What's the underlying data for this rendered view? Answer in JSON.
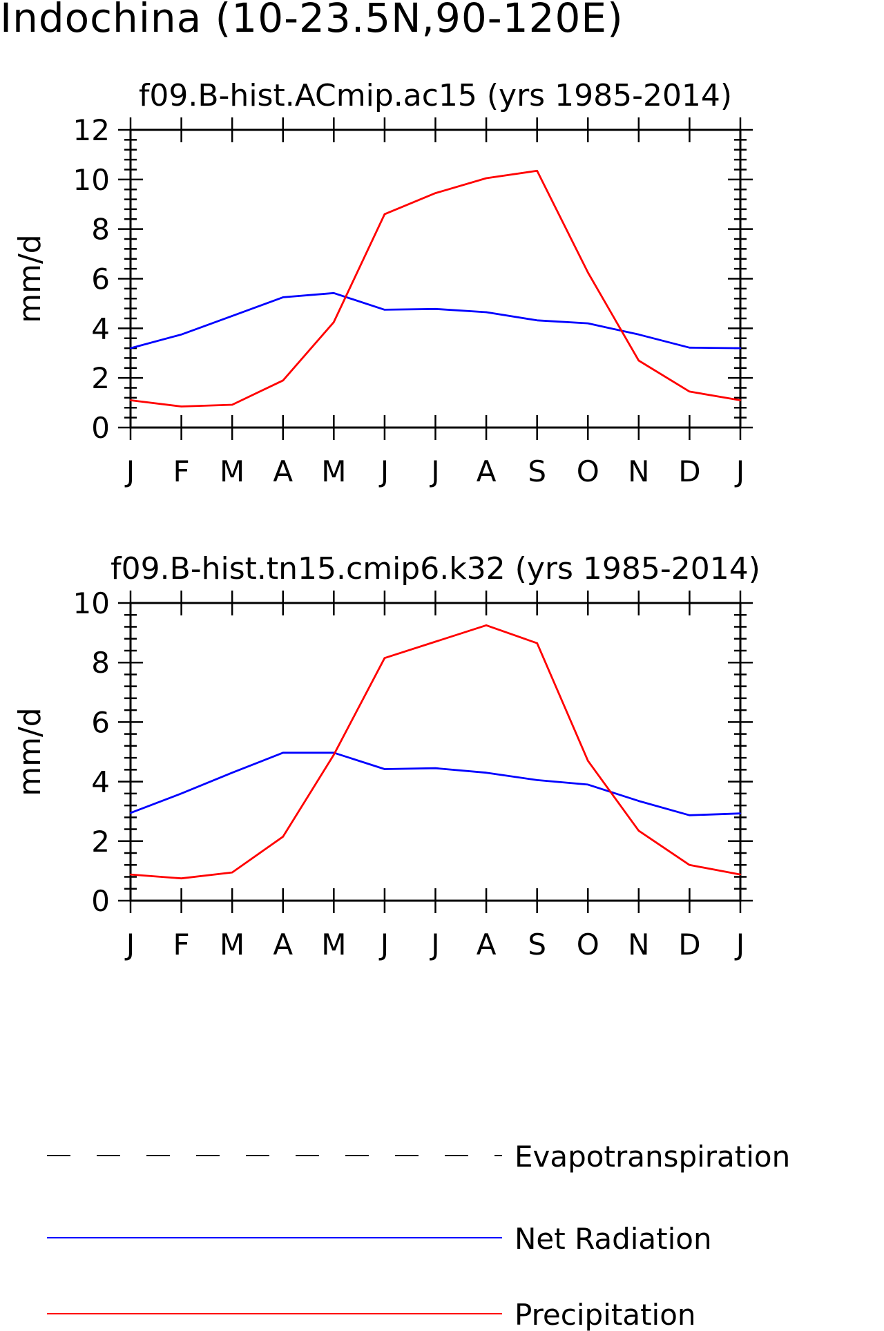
{
  "title": "Indochina (10-23.5N,90-120E)",
  "chart_data": [
    {
      "type": "line",
      "title": "f09.B-hist.ACmip.ac15 (yrs 1985-2014)",
      "ylabel": "mm/d",
      "xlabel": "",
      "ylim": [
        0,
        12
      ],
      "yticks": [
        0,
        2,
        4,
        6,
        8,
        10,
        12
      ],
      "x_tick_labels": [
        "J",
        "F",
        "M",
        "A",
        "M",
        "J",
        "J",
        "A",
        "S",
        "O",
        "N",
        "D",
        "J"
      ],
      "grid": false,
      "series": [
        {
          "name": "Net Radiation",
          "color": "#0000ff",
          "values": [
            3.2,
            3.75,
            4.5,
            5.25,
            5.42,
            4.75,
            4.78,
            4.65,
            4.32,
            4.2,
            3.75,
            3.22,
            3.2
          ]
        },
        {
          "name": "Precipitation",
          "color": "#ff0000",
          "values": [
            1.1,
            0.85,
            0.92,
            1.9,
            4.25,
            8.6,
            9.45,
            10.05,
            10.35,
            6.25,
            2.7,
            1.45,
            1.1
          ]
        }
      ]
    },
    {
      "type": "line",
      "title": "f09.B-hist.tn15.cmip6.k32 (yrs 1985-2014)",
      "ylabel": "mm/d",
      "xlabel": "",
      "ylim": [
        0,
        10
      ],
      "yticks": [
        0,
        2,
        4,
        6,
        8,
        10
      ],
      "x_tick_labels": [
        "J",
        "F",
        "M",
        "A",
        "M",
        "J",
        "J",
        "A",
        "S",
        "O",
        "N",
        "D",
        "J"
      ],
      "grid": false,
      "series": [
        {
          "name": "Net Radiation",
          "color": "#0000ff",
          "values": [
            2.95,
            3.6,
            4.3,
            4.97,
            4.97,
            4.42,
            4.45,
            4.3,
            4.05,
            3.9,
            3.35,
            2.87,
            2.93
          ]
        },
        {
          "name": "Precipitation",
          "color": "#ff0000",
          "values": [
            0.88,
            0.75,
            0.95,
            2.15,
            4.9,
            8.15,
            8.7,
            9.25,
            8.65,
            4.7,
            2.35,
            1.2,
            0.88
          ]
        }
      ]
    }
  ],
  "legend": {
    "position": "bottom",
    "items": [
      {
        "label": "Evapotranspiration",
        "color": "#000000",
        "style": "dashed"
      },
      {
        "label": "Net Radiation",
        "color": "#0000ff",
        "style": "solid"
      },
      {
        "label": "Precipitation",
        "color": "#ff0000",
        "style": "solid"
      }
    ]
  }
}
